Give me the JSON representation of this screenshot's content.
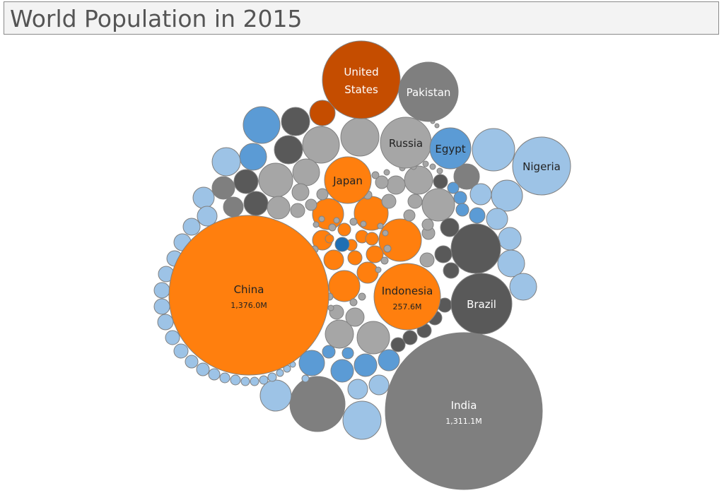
{
  "header": {
    "title": "World Population in 2015"
  },
  "colors": {
    "orange": "#ff7f0e",
    "dark_orange": "#c54d00",
    "deep_blue": "#1f6fb4",
    "blue": "#5b9bd5",
    "light_blue": "#9dc3e6",
    "light_gray": "#a6a6a6",
    "gray": "#7f7f7f",
    "dark_gray": "#595959",
    "stroke": "#808080"
  },
  "chart_data": {
    "type": "bubble",
    "title": "World Population in 2015",
    "unit": "M",
    "labeled_bubbles": [
      {
        "name": "China",
        "value": 1376.0,
        "value_label": "1,376.0M",
        "color": "orange"
      },
      {
        "name": "India",
        "value": 1311.1,
        "value_label": "1,311.1M",
        "color": "gray"
      },
      {
        "name": "United States",
        "name_lines": [
          "United",
          "States"
        ],
        "color": "dark_orange"
      },
      {
        "name": "Indonesia",
        "value": 257.6,
        "value_label": "257.6M",
        "color": "orange"
      },
      {
        "name": "Brazil",
        "color": "dark_gray"
      },
      {
        "name": "Pakistan",
        "color": "gray"
      },
      {
        "name": "Nigeria",
        "color": "light_blue"
      },
      {
        "name": "Russia",
        "color": "light_gray"
      },
      {
        "name": "Japan",
        "color": "orange"
      },
      {
        "name": "Egypt",
        "color": "blue"
      }
    ]
  }
}
